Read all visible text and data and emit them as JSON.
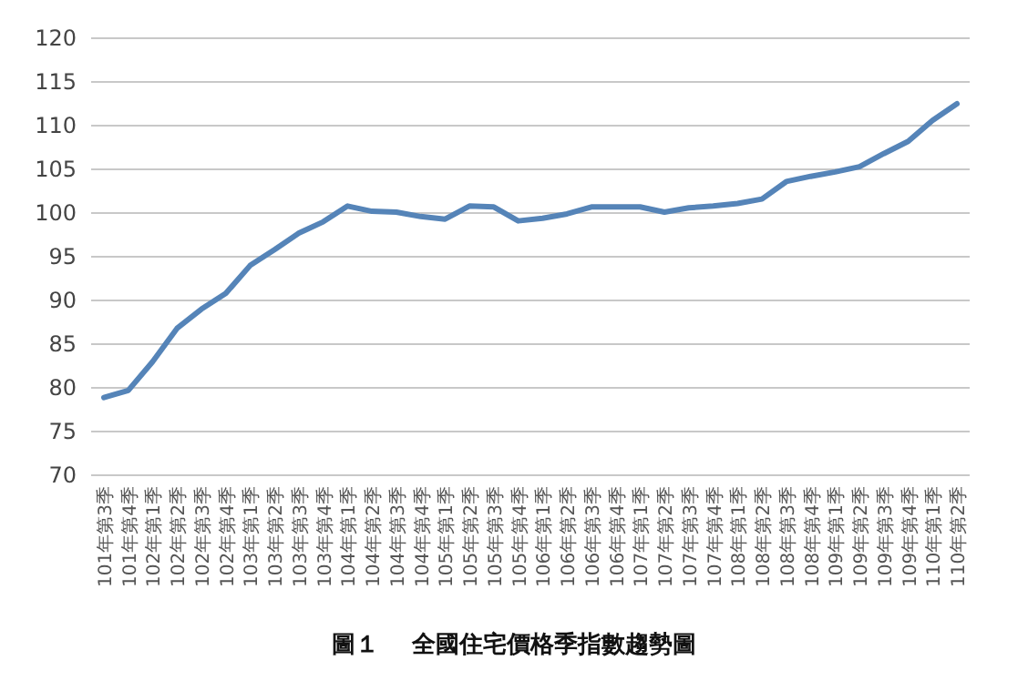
{
  "chart_data": {
    "type": "line",
    "title": "圖１　 全國住宅價格季指數趨勢圖",
    "categories": [
      "101年第3季",
      "101年第4季",
      "102年第1季",
      "102年第2季",
      "102年第3季",
      "102年第4季",
      "103年第1季",
      "103年第2季",
      "103年第3季",
      "103年第4季",
      "104年第1季",
      "104年第2季",
      "104年第3季",
      "104年第4季",
      "105年第1季",
      "105年第2季",
      "105年第3季",
      "105年第4季",
      "106年第1季",
      "106年第2季",
      "106年第3季",
      "106年第4季",
      "107年第1季",
      "107年第2季",
      "107年第3季",
      "107年第4季",
      "108年第1季",
      "108年第2季",
      "108年第3季",
      "108年第4季",
      "109年第1季",
      "109年第2季",
      "109年第3季",
      "109年第4季",
      "110年第1季",
      "110年第2季"
    ],
    "series": [
      {
        "color": "#5584b8",
        "values": [
          78.9,
          79.7,
          83,
          86.8,
          89,
          90.8,
          94,
          95.8,
          97.7,
          99,
          100.8,
          100.2,
          100.1,
          99.6,
          99.3,
          100.8,
          100.7,
          99.1,
          99.4,
          99.9,
          100.7,
          100.7,
          100.7,
          100.1,
          100.6,
          100.8,
          101.1,
          101.6,
          103.6,
          104.2,
          104.7,
          105.3,
          106.8,
          108.2,
          110.6,
          112.5
        ]
      }
    ],
    "ylim": [
      70,
      120
    ],
    "yticks": [
      70,
      75,
      80,
      85,
      90,
      95,
      100,
      105,
      110,
      115,
      120
    ],
    "grid": "y",
    "marker": "none",
    "line_style": "solid"
  }
}
